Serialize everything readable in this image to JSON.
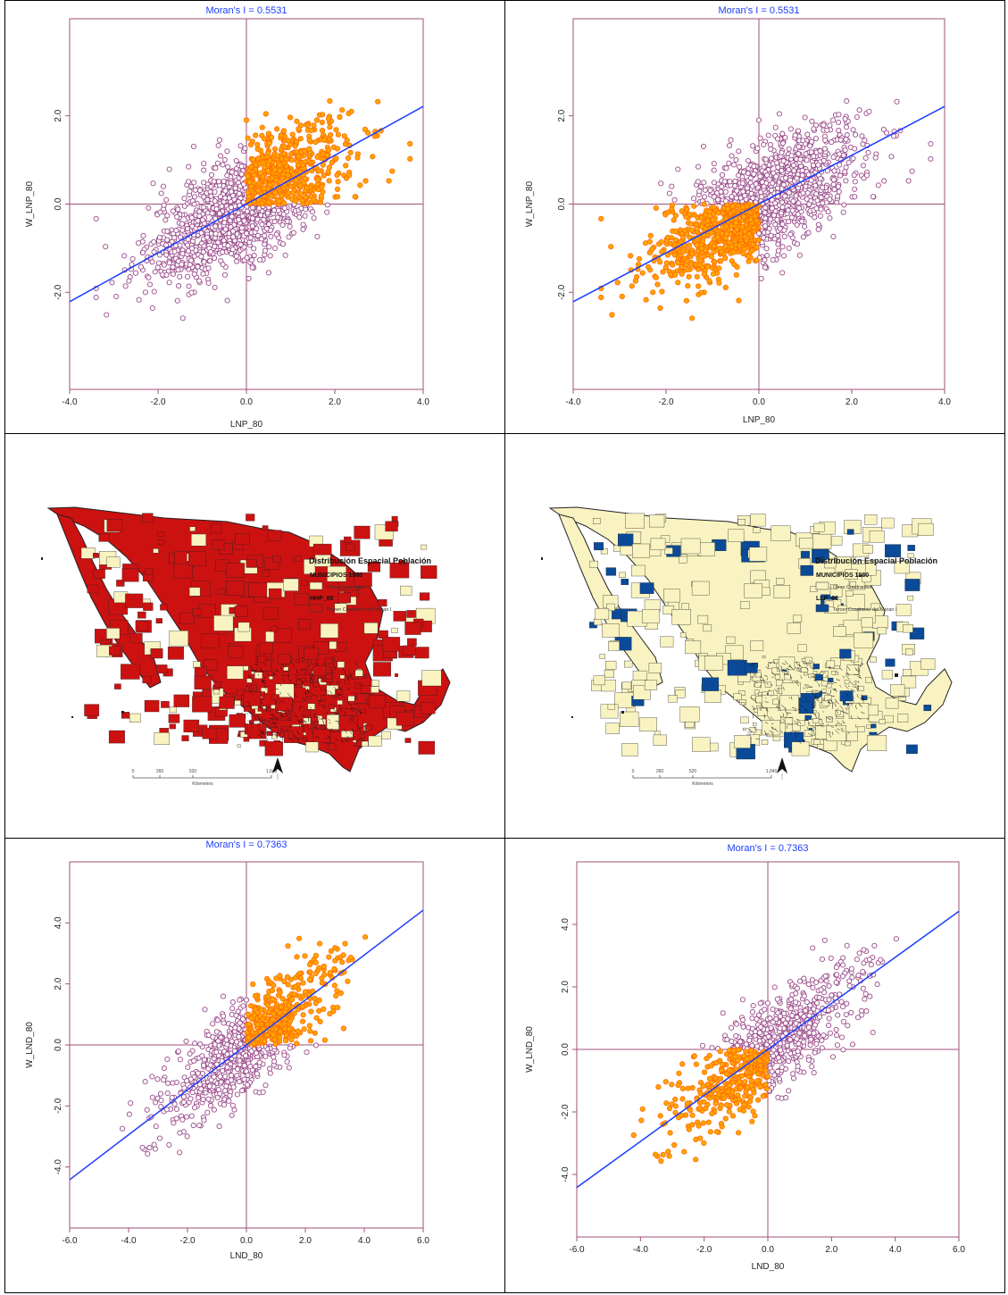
{
  "charts": [
    {
      "type": "scatter",
      "title": "Moran's I = 0.5531",
      "xlabel": "LNP_80",
      "ylabel": "W_LNP_80",
      "xlim": [
        -4.0,
        4.0
      ],
      "ylim": [
        -4.2,
        4.2
      ],
      "xticks": [
        "-4.0",
        "-2.0",
        "0.0",
        "2.0",
        "4.0"
      ],
      "yticks": [
        "-2.0",
        "0.0",
        "2.0"
      ],
      "ytick_values": [
        -2.0,
        0.0,
        2.0
      ],
      "slope": 0.5531,
      "highlight": "HH",
      "center": [
        0.0,
        0.0
      ],
      "spread": [
        1.1,
        0.8
      ]
    },
    {
      "type": "scatter",
      "title": "Moran's I = 0.5531",
      "xlabel": "LNP_80",
      "ylabel": "W_LNP_80",
      "xlim": [
        -4.0,
        4.0
      ],
      "ylim": [
        -4.2,
        4.2
      ],
      "xticks": [
        "-4.0",
        "-2.0",
        "0.0",
        "2.0",
        "4.0"
      ],
      "yticks": [
        "-2.0",
        "0.0",
        "2.0"
      ],
      "ytick_values": [
        -2.0,
        0.0,
        2.0
      ],
      "slope": 0.5531,
      "highlight": "LL",
      "center": [
        0.0,
        0.0
      ],
      "spread": [
        1.1,
        0.8
      ]
    },
    {
      "type": "scatter",
      "title": "Moran's I = 0.7363",
      "xlabel": "LND_80",
      "ylabel": "W_LND_80",
      "xlim": [
        -6.0,
        6.0
      ],
      "ylim": [
        -6.0,
        6.0
      ],
      "xticks": [
        "-6.0",
        "-4.0",
        "-2.0",
        "0.0",
        "2.0",
        "4.0",
        "6.0"
      ],
      "yticks": [
        "-4.0",
        "-2.0",
        "0.0",
        "2.0",
        "4.0"
      ],
      "ytick_values": [
        -4.0,
        -2.0,
        0.0,
        2.0,
        4.0
      ],
      "slope": 0.7363,
      "highlight": "HH",
      "center": [
        0.0,
        0.0
      ],
      "spread": [
        1.4,
        1.0
      ]
    },
    {
      "type": "scatter",
      "title": "Moran's I = 0.7363",
      "xlabel": "LND_80",
      "ylabel": "W_LND_80",
      "xlim": [
        -6.0,
        6.0
      ],
      "ylim": [
        -6.0,
        6.0
      ],
      "xticks": [
        "-6.0",
        "-4.0",
        "-2.0",
        "0.0",
        "2.0",
        "4.0",
        "6.0"
      ],
      "yticks": [
        "-4.0",
        "-2.0",
        "0.0",
        "2.0",
        "4.0"
      ],
      "ytick_values": [
        -4.0,
        -2.0,
        0.0,
        2.0,
        4.0
      ],
      "slope": 0.7363,
      "highlight": "LL",
      "center": [
        0.0,
        0.0
      ],
      "spread": [
        1.4,
        1.0
      ]
    }
  ],
  "maps": [
    {
      "legend_title": "Distribución Espacial Población",
      "layer1": "MUNICIPIOS 1980",
      "layer1_item": "Otros Cuadrantes",
      "layer2": "HHP_80",
      "layer2_item": "Primer Cuadrante del Moran I",
      "highlight_color": "#cc1111",
      "scale_ticks": [
        "0",
        "260",
        "520",
        "1,040"
      ],
      "scale_unit": "Kilometers"
    },
    {
      "legend_title": "Distribución Espacial Población",
      "layer1": "MUNICIPIOS 1980",
      "layer1_item": "Otros Cuadrantes",
      "layer2": "LLP_80",
      "layer2_item": "Tercer Cuadrante del Moran I",
      "highlight_color": "#0a4a99",
      "scale_ticks": [
        "0",
        "260",
        "520",
        "1,040"
      ],
      "scale_unit": "Kilometers"
    }
  ],
  "colors": {
    "frame": "#a0527a",
    "regression": "#1a3dff",
    "title": "#1a3dff",
    "point_highlight_fill": "#ffa500",
    "point_highlight_stroke": "#ff6a00",
    "point_other_stroke": "#9a4a8a",
    "map_base": "#f8f3c0"
  }
}
